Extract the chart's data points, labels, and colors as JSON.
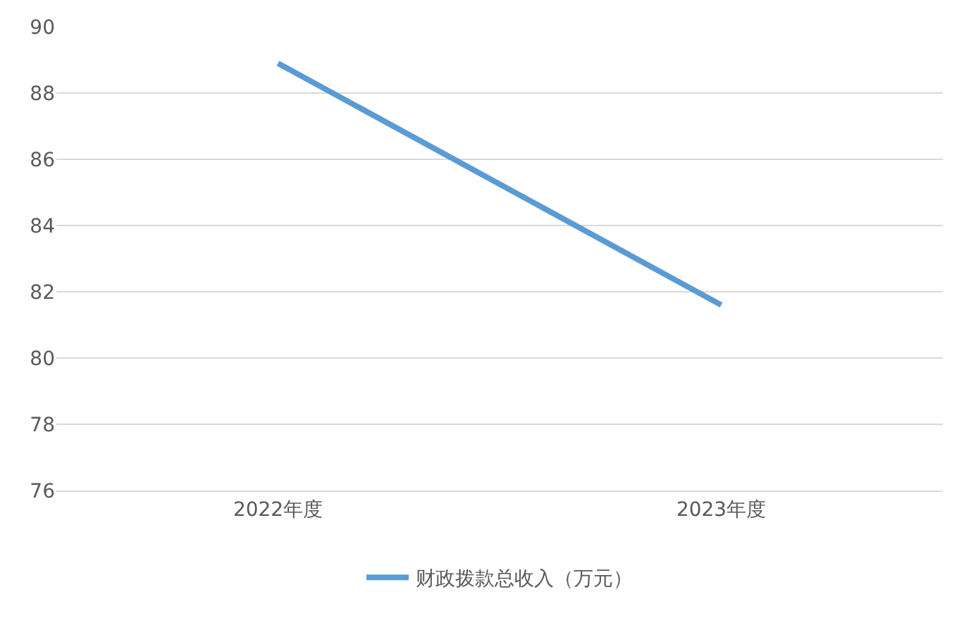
{
  "chart_data": {
    "type": "line",
    "categories": [
      "2022年度",
      "2023年度"
    ],
    "series": [
      {
        "name": "财政拨款总收入（万元）",
        "color": "#5b9bd5",
        "values": [
          88.9,
          81.6
        ]
      }
    ],
    "ylim": [
      76,
      90
    ],
    "yticks": [
      76,
      78,
      80,
      82,
      84,
      86,
      88,
      90
    ],
    "grid": "y",
    "legend": "bottom",
    "marker": "none",
    "line_style": "solid"
  }
}
